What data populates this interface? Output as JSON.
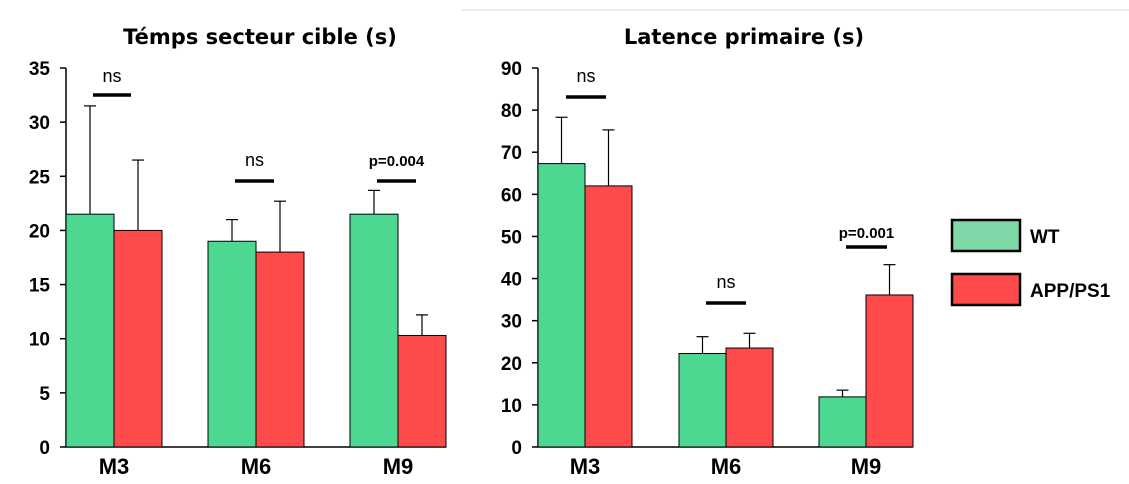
{
  "colors": {
    "wt": "#4cd890",
    "app": "#fe4a4a",
    "legend_wt": "#7ed8a8",
    "axis": "#000000"
  },
  "legend": {
    "items": [
      {
        "label": "WT"
      },
      {
        "label": "APP/PS1"
      }
    ]
  },
  "chart_data": [
    {
      "type": "bar",
      "title": "Témps secteur cible (s)",
      "xlabel": "",
      "ylabel": "",
      "ylim": [
        0,
        35
      ],
      "yticks": [
        0,
        5,
        10,
        15,
        20,
        25,
        30,
        35
      ],
      "categories": [
        "M3",
        "M6",
        "M9"
      ],
      "series": [
        {
          "name": "WT",
          "values": [
            21.5,
            19,
            21.5
          ],
          "errors": [
            10,
            2,
            2.2
          ]
        },
        {
          "name": "APP/PS1",
          "values": [
            20,
            18,
            10.3
          ],
          "errors": [
            6.5,
            4.7,
            1.9
          ]
        }
      ],
      "annotations": [
        "ns",
        "ns",
        "p=0.004"
      ],
      "grid": false
    },
    {
      "type": "bar",
      "title": "Latence primaire (s)",
      "xlabel": "",
      "ylabel": "",
      "ylim": [
        0,
        90
      ],
      "yticks": [
        0,
        10,
        20,
        30,
        40,
        50,
        60,
        70,
        80,
        90
      ],
      "categories": [
        "M3",
        "M6",
        "M9"
      ],
      "series": [
        {
          "name": "WT",
          "values": [
            67.3,
            22.2,
            11.9
          ],
          "errors": [
            11,
            4,
            1.6
          ]
        },
        {
          "name": "APP/PS1",
          "values": [
            62,
            23.5,
            36.1
          ],
          "errors": [
            13.3,
            3.5,
            7.2
          ]
        }
      ],
      "annotations": [
        "ns",
        "ns",
        "p=0.001"
      ],
      "grid": false
    }
  ]
}
